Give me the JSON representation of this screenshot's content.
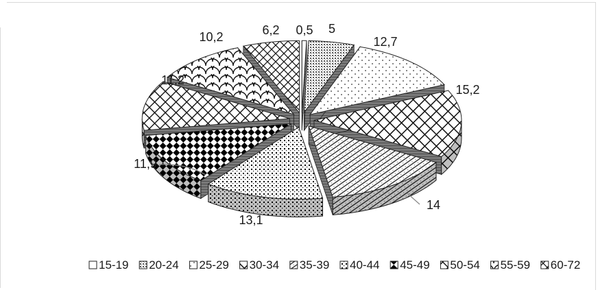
{
  "chart_data": {
    "type": "pie",
    "style": "exploded-3d",
    "categories": [
      "15-19",
      "20-24",
      "25-29",
      "30-34",
      "35-39",
      "40-44",
      "45-49",
      "50-54",
      "55-59",
      "60-72"
    ],
    "values": [
      0.5,
      5,
      12.7,
      15.2,
      14,
      13.1,
      11.9,
      11.2,
      10.2,
      6.2
    ],
    "data_labels": [
      "0,5",
      "5",
      "12,7",
      "15,2",
      "14",
      "13,1",
      "11,9",
      "11,2",
      "10,2",
      "6,2"
    ],
    "legend_position": "bottom",
    "title": ""
  },
  "legend": {
    "items": [
      "15-19",
      "20-24",
      "25-29",
      "30-34",
      "35-39",
      "40-44",
      "45-49",
      "50-54",
      "55-59",
      "60-72"
    ]
  }
}
